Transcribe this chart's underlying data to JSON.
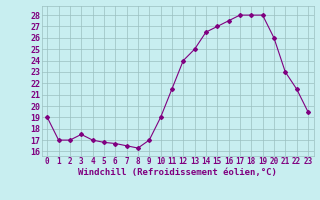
{
  "x": [
    0,
    1,
    2,
    3,
    4,
    5,
    6,
    7,
    8,
    9,
    10,
    11,
    12,
    13,
    14,
    15,
    16,
    17,
    18,
    19,
    20,
    21,
    22,
    23
  ],
  "y": [
    19,
    17,
    17,
    17.5,
    17,
    16.8,
    16.7,
    16.5,
    16.3,
    17,
    19,
    21.5,
    24,
    25,
    26.5,
    27,
    27.5,
    28,
    28,
    28,
    26,
    23,
    21.5,
    19.5
  ],
  "line_color": "#800080",
  "marker": "D",
  "marker_size": 2,
  "bg_color": "#c8eef0",
  "grid_color": "#9bbfc0",
  "xlabel": "Windchill (Refroidissement éolien,°C)",
  "ylabel_ticks": [
    16,
    17,
    18,
    19,
    20,
    21,
    22,
    23,
    24,
    25,
    26,
    27,
    28
  ],
  "ylim": [
    15.6,
    28.8
  ],
  "xlim": [
    -0.5,
    23.5
  ],
  "tick_color": "#800080",
  "label_color": "#800080",
  "xlabel_fontsize": 6.5,
  "ytick_fontsize": 6,
  "xtick_fontsize": 5.5
}
